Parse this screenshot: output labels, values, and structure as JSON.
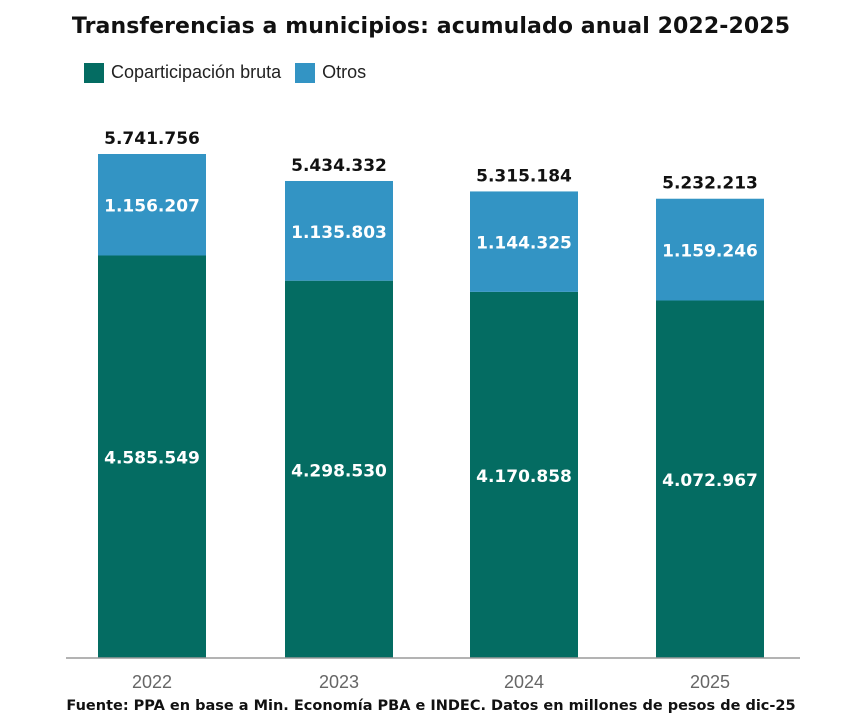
{
  "chart_data": {
    "type": "bar",
    "stacked": true,
    "title": "Transferencias a municipios: acumulado anual 2022-2025",
    "categories": [
      "2022",
      "2023",
      "2024",
      "2025"
    ],
    "series": [
      {
        "name": "Coparticipación bruta",
        "color": "#046c62",
        "values": [
          4585549,
          4298530,
          4170858,
          4072967
        ],
        "labels": [
          "4.585.549",
          "4.298.530",
          "4.170.858",
          "4.072.967"
        ]
      },
      {
        "name": "Otros",
        "color": "#3394c4",
        "values": [
          1156207,
          1135803,
          1144325,
          1159246
        ],
        "labels": [
          "1.156.207",
          "1.135.803",
          "1.144.325",
          "1.159.246"
        ]
      }
    ],
    "totals": [
      5741756,
      5434332,
      5315184,
      5232213
    ],
    "total_labels": [
      "5.741.756",
      "5.434.332",
      "5.315.184",
      "5.232.213"
    ],
    "ylim": [
      0,
      5741756
    ],
    "grid": false,
    "legend_position": "top-left"
  },
  "source": "Fuente: PPA en base a Min. Economía PBA e INDEC. Datos en millones de pesos de dic-25"
}
